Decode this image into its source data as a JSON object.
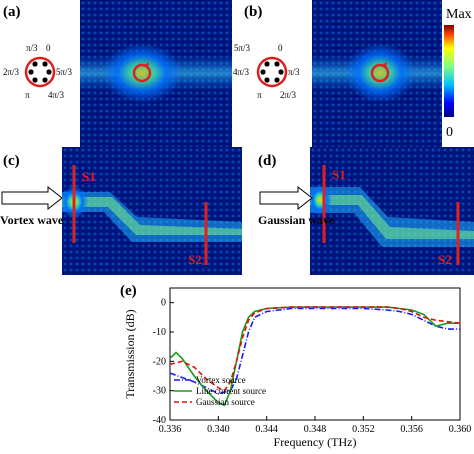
{
  "panels": {
    "a": {
      "label": "(a)",
      "phases": [
        "π/3",
        "0",
        "2π/3",
        "5π/3",
        "π",
        "4π/3"
      ]
    },
    "b": {
      "label": "(b)",
      "phases": [
        "5π/3",
        "0",
        "4π/3",
        "π/3",
        "π",
        "2π/3"
      ]
    },
    "c": {
      "label": "(c)",
      "source_text": "Vortex wave",
      "s1": "S1",
      "s2": "S2"
    },
    "d": {
      "label": "(d)",
      "source_text": "Gaussian wave",
      "s1": "S1",
      "s2": "S2"
    },
    "e": {
      "label": "(e)"
    }
  },
  "colorbar": {
    "max_label": "Max",
    "min_label": "0"
  },
  "colors": {
    "field_low": "#00007f",
    "field_mid": "#00c0ff",
    "field_high": "#ffff00",
    "marker": "#e02020"
  },
  "chart_data": {
    "type": "line",
    "xlabel": "Frequency (THz)",
    "ylabel": "Transmission (dB)",
    "xlim": [
      0.336,
      0.36
    ],
    "ylim": [
      -40,
      5
    ],
    "xticks": [
      "0.336",
      "0.340",
      "0.344",
      "0.348",
      "0.352",
      "0.356",
      "0.360"
    ],
    "yticks": [
      "-40",
      "-30",
      "-20",
      "-10",
      "0"
    ],
    "legend_position": "bottom-left",
    "series": [
      {
        "name": "Vortex source",
        "color": "#1a1aff",
        "dash": "dashdot",
        "x": [
          0.336,
          0.338,
          0.339,
          0.34,
          0.341,
          0.3415,
          0.342,
          0.3425,
          0.343,
          0.344,
          0.346,
          0.348,
          0.35,
          0.352,
          0.354,
          0.355,
          0.356,
          0.357,
          0.358,
          0.359,
          0.36
        ],
        "y": [
          -24,
          -27,
          -29,
          -31,
          -30,
          -26,
          -18,
          -10,
          -5,
          -3,
          -2,
          -2,
          -2,
          -2,
          -2.5,
          -3,
          -4,
          -6,
          -8,
          -9,
          -9
        ]
      },
      {
        "name": "Line current source",
        "color": "#1a9a1a",
        "dash": "solid",
        "x": [
          0.336,
          0.3365,
          0.337,
          0.338,
          0.339,
          0.34,
          0.3405,
          0.341,
          0.3415,
          0.342,
          0.3425,
          0.343,
          0.344,
          0.346,
          0.348,
          0.35,
          0.352,
          0.354,
          0.355,
          0.356,
          0.357,
          0.358,
          0.359,
          0.36
        ],
        "y": [
          -19,
          -17,
          -19,
          -25,
          -30,
          -34,
          -35,
          -30,
          -20,
          -10,
          -5,
          -3,
          -2,
          -1.5,
          -1.5,
          -1.5,
          -1.5,
          -1.5,
          -2,
          -2.5,
          -4,
          -8,
          -7,
          -7
        ]
      },
      {
        "name": "Gaussian source",
        "color": "#e01010",
        "dash": "dashed",
        "x": [
          0.336,
          0.337,
          0.338,
          0.339,
          0.34,
          0.3405,
          0.341,
          0.3415,
          0.342,
          0.3425,
          0.343,
          0.344,
          0.346,
          0.348,
          0.35,
          0.352,
          0.354,
          0.355,
          0.356,
          0.357,
          0.358,
          0.359,
          0.36
        ],
        "y": [
          -21,
          -20,
          -22,
          -26,
          -29,
          -30,
          -27,
          -20,
          -12,
          -6,
          -3.5,
          -2,
          -1.5,
          -1.5,
          -1.5,
          -1.5,
          -1.5,
          -2,
          -3,
          -5,
          -6,
          -6.5,
          -7
        ]
      }
    ]
  }
}
